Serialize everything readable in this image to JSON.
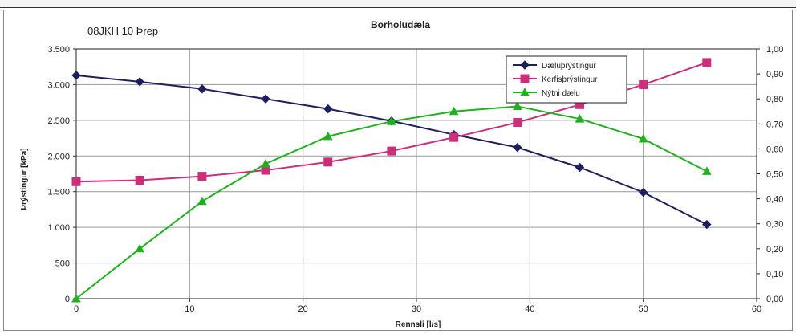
{
  "chart_data": {
    "type": "line",
    "title": "Borholudæla",
    "subtitle": "08JKH  10 Þrep",
    "xlabel": "Rennsli  [l/s]",
    "ylabel": "Þrýstingur [kPa]",
    "ylabel_right": "",
    "xlim": [
      0,
      60
    ],
    "ylim": [
      0,
      3500
    ],
    "ylim_right": [
      0,
      1.0
    ],
    "x_ticks": [
      0,
      10,
      20,
      30,
      40,
      50,
      60
    ],
    "y_ticks": [
      0,
      500,
      1000,
      1500,
      2000,
      2500,
      3000,
      3500
    ],
    "y_tick_labels": [
      "0",
      "500",
      "1.000",
      "1.500",
      "2.000",
      "2.500",
      "3.000",
      "3.500"
    ],
    "y_right_ticks": [
      0,
      0.1,
      0.2,
      0.3,
      0.4,
      0.5,
      0.6,
      0.7,
      0.8,
      0.9,
      1.0
    ],
    "y_right_tick_labels": [
      "0,00",
      "0,10",
      "0,20",
      "0,30",
      "0,40",
      "0,50",
      "0,60",
      "0,70",
      "0,80",
      "0,90",
      "1,00"
    ],
    "grid": true,
    "legend_position": "top-right",
    "series": [
      {
        "name": "Dæluþrýstingur",
        "axis": "left",
        "color": "#1f1f5e",
        "marker": "diamond",
        "x": [
          0,
          5.6,
          11.1,
          16.7,
          22.2,
          27.8,
          33.3,
          38.9,
          44.4,
          50.0,
          55.6
        ],
        "y": [
          3130,
          3040,
          2940,
          2800,
          2660,
          2490,
          2300,
          2120,
          1840,
          1490,
          1040
        ]
      },
      {
        "name": "Kerfisþrýstingur",
        "axis": "left",
        "color": "#cc2f7a",
        "marker": "square",
        "x": [
          0,
          5.6,
          11.1,
          16.7,
          22.2,
          27.8,
          33.3,
          38.9,
          44.4,
          50.0,
          55.6
        ],
        "y": [
          1640,
          1660,
          1715,
          1800,
          1915,
          2070,
          2260,
          2470,
          2720,
          3000,
          3310
        ]
      },
      {
        "name": "Nýtni dælu",
        "axis": "right",
        "color": "#22b022",
        "marker": "triangle",
        "x": [
          0,
          5.6,
          11.1,
          16.7,
          22.2,
          27.8,
          33.3,
          38.9,
          44.4,
          50.0,
          55.6
        ],
        "y": [
          0.0,
          0.2,
          0.39,
          0.54,
          0.65,
          0.71,
          0.75,
          0.77,
          0.72,
          0.64,
          0.51
        ]
      }
    ]
  }
}
